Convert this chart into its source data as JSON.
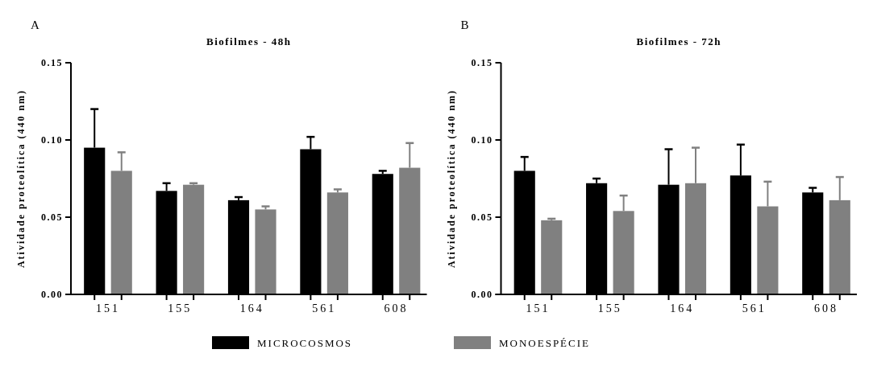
{
  "chart_data": [
    {
      "type": "bar",
      "title": "Biofilmes - 48h",
      "ylabel": "Atividade proteolítica (440 nm)",
      "annotations": [
        "A"
      ],
      "categories": [
        "151",
        "155",
        "164",
        "561",
        "608"
      ],
      "series": [
        {
          "name": "MICROCOSMOS",
          "color": "#000000",
          "values": [
            0.095,
            0.067,
            0.061,
            0.094,
            0.078
          ],
          "errors": [
            [
              0.095,
              0.12
            ],
            [
              0.067,
              0.072
            ],
            [
              0.061,
              0.063
            ],
            [
              0.094,
              0.102
            ],
            [
              0.078,
              0.08
            ]
          ]
        },
        {
          "name": "MONOESPÉCIE",
          "color": "#808080",
          "values": [
            0.08,
            0.071,
            0.055,
            0.066,
            0.082
          ],
          "errors": [
            [
              0.08,
              0.092
            ],
            [
              0.071,
              0.072
            ],
            [
              0.055,
              0.057
            ],
            [
              0.066,
              0.068
            ],
            [
              0.082,
              0.098
            ]
          ]
        }
      ],
      "ylim": [
        0,
        0.15
      ],
      "yticks": [
        {
          "value": 0,
          "label": "0.00"
        },
        {
          "value": 0.05,
          "label": "0.05"
        },
        {
          "value": 0.1,
          "label": "0.10"
        },
        {
          "value": 0.15,
          "label": "0.15"
        }
      ],
      "grid": false,
      "legend": "bottom"
    },
    {
      "type": "bar",
      "title": "Biofilmes - 72h",
      "ylabel": "Atividade proteolítica (440 nm)",
      "annotations": [
        "B"
      ],
      "categories": [
        "151",
        "155",
        "164",
        "561",
        "608"
      ],
      "series": [
        {
          "color": "#000000",
          "values": [
            0.08,
            0.072,
            0.071,
            0.077,
            0.066
          ],
          "errors": [
            [
              0.08,
              0.089
            ],
            [
              0.072,
              0.075
            ],
            [
              0.071,
              0.094
            ],
            [
              0.077,
              0.097
            ],
            [
              0.066,
              0.069
            ]
          ]
        },
        {
          "color": "#808080",
          "values": [
            0.048,
            0.054,
            0.072,
            0.057,
            0.061
          ],
          "errors": [
            [
              0.048,
              0.049
            ],
            [
              0.054,
              0.064
            ],
            [
              0.072,
              0.095
            ],
            [
              0.057,
              0.073
            ],
            [
              0.061,
              0.076
            ]
          ]
        }
      ],
      "ylim": [
        0,
        0.15
      ],
      "yticks": [
        {
          "value": 0,
          "label": "0.00"
        },
        {
          "value": 0.05,
          "label": "0.05"
        },
        {
          "value": 0.1,
          "label": "0.10"
        },
        {
          "value": 0.15,
          "label": "0.15"
        }
      ],
      "grid": false
    }
  ]
}
